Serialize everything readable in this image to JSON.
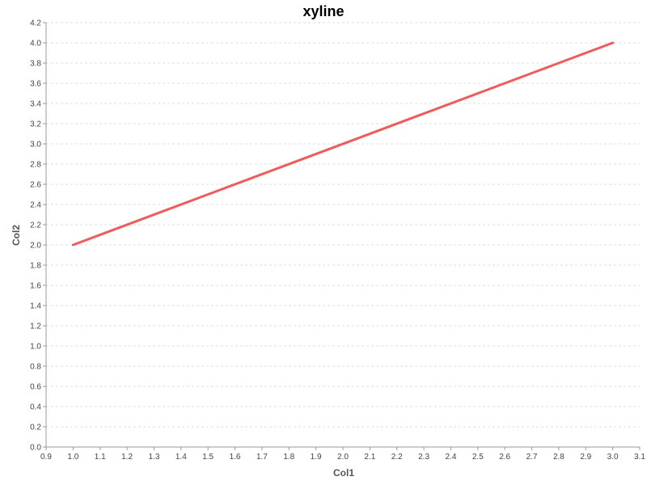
{
  "chart_data": {
    "type": "line",
    "title": "xyline",
    "xlabel": "Col1",
    "ylabel": "Col2",
    "xlim": [
      0.9,
      3.1
    ],
    "ylim": [
      0.0,
      4.2
    ],
    "x_ticks": [
      "0.9",
      "1.0",
      "1.1",
      "1.2",
      "1.3",
      "1.4",
      "1.5",
      "1.6",
      "1.7",
      "1.8",
      "1.9",
      "2.0",
      "2.1",
      "2.2",
      "2.3",
      "2.4",
      "2.5",
      "2.6",
      "2.7",
      "2.8",
      "2.9",
      "3.0",
      "3.1"
    ],
    "y_ticks": [
      "0.0",
      "0.2",
      "0.4",
      "0.6",
      "0.8",
      "1.0",
      "1.2",
      "1.4",
      "1.6",
      "1.8",
      "2.0",
      "2.2",
      "2.4",
      "2.6",
      "2.8",
      "3.0",
      "3.2",
      "3.4",
      "3.6",
      "3.8",
      "4.0",
      "4.2"
    ],
    "grid": "horizontal",
    "legend": "none",
    "series": [
      {
        "color": "#f05a5a",
        "points": [
          {
            "x": 1.0,
            "y": 2.0
          },
          {
            "x": 3.0,
            "y": 4.0
          }
        ]
      }
    ]
  }
}
